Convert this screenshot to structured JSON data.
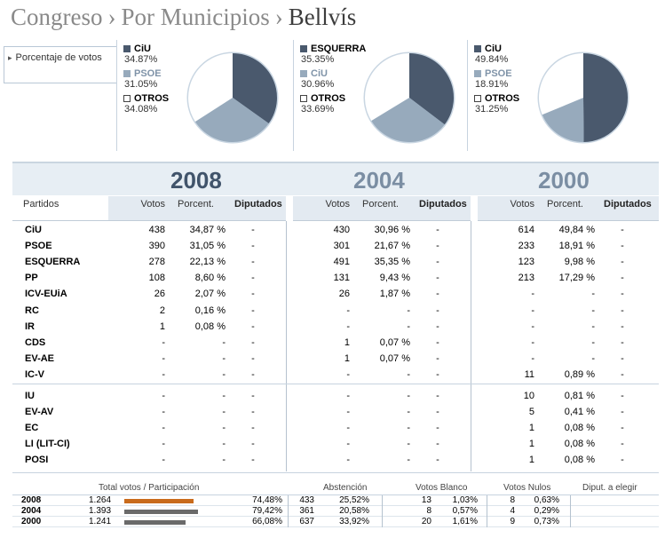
{
  "breadcrumb": {
    "part1": "Congreso",
    "sep": "›",
    "part2": "Por Municipios",
    "current": "Bellvís"
  },
  "sidebar": {
    "tab_label": "Porcentaje de votos"
  },
  "pies": [
    {
      "year": "2008",
      "legend": [
        {
          "name": "CiU",
          "value": "34.87%",
          "color": "#4a596d"
        },
        {
          "name": "PSOE",
          "value": "31.05%",
          "color": "#97aabc"
        },
        {
          "name": "OTROS",
          "value": "34.08%",
          "color": "#ffffff"
        }
      ]
    },
    {
      "year": "2004",
      "legend": [
        {
          "name": "ESQUERRA",
          "value": "35.35%",
          "color": "#4a596d"
        },
        {
          "name": "CiU",
          "value": "30.96%",
          "color": "#97aabc"
        },
        {
          "name": "OTROS",
          "value": "33.69%",
          "color": "#ffffff"
        }
      ]
    },
    {
      "year": "2000",
      "legend": [
        {
          "name": "CiU",
          "value": "49.84%",
          "color": "#4a596d"
        },
        {
          "name": "PSOE",
          "value": "18.91%",
          "color": "#97aabc"
        },
        {
          "name": "OTROS",
          "value": "31.25%",
          "color": "#ffffff"
        }
      ]
    }
  ],
  "years": [
    "2008",
    "2004",
    "2000"
  ],
  "columns": {
    "partidos": "Partidos",
    "votos": "Votos",
    "porcent": "Porcent.",
    "diputados": "Diputados"
  },
  "rows": [
    {
      "party": "CiU",
      "v": [
        [
          "438",
          "34,87 %",
          "-"
        ],
        [
          "430",
          "30,96 %",
          "-"
        ],
        [
          "614",
          "49,84 %",
          "-"
        ]
      ]
    },
    {
      "party": "PSOE",
      "v": [
        [
          "390",
          "31,05 %",
          "-"
        ],
        [
          "301",
          "21,67 %",
          "-"
        ],
        [
          "233",
          "18,91 %",
          "-"
        ]
      ]
    },
    {
      "party": "ESQUERRA",
      "v": [
        [
          "278",
          "22,13 %",
          "-"
        ],
        [
          "491",
          "35,35 %",
          "-"
        ],
        [
          "123",
          "9,98 %",
          "-"
        ]
      ]
    },
    {
      "party": "PP",
      "v": [
        [
          "108",
          "8,60 %",
          "-"
        ],
        [
          "131",
          "9,43 %",
          "-"
        ],
        [
          "213",
          "17,29 %",
          "-"
        ]
      ]
    },
    {
      "party": "ICV-EUiA",
      "v": [
        [
          "26",
          "2,07 %",
          "-"
        ],
        [
          "26",
          "1,87 %",
          "-"
        ],
        [
          "-",
          "-",
          "-"
        ]
      ]
    },
    {
      "party": "RC",
      "v": [
        [
          "2",
          "0,16 %",
          "-"
        ],
        [
          "-",
          "-",
          "-"
        ],
        [
          "-",
          "-",
          "-"
        ]
      ]
    },
    {
      "party": "IR",
      "v": [
        [
          "1",
          "0,08 %",
          "-"
        ],
        [
          "-",
          "-",
          "-"
        ],
        [
          "-",
          "-",
          "-"
        ]
      ]
    },
    {
      "party": "CDS",
      "v": [
        [
          "-",
          "-",
          "-"
        ],
        [
          "1",
          "0,07 %",
          "-"
        ],
        [
          "-",
          "-",
          "-"
        ]
      ]
    },
    {
      "party": "EV-AE",
      "v": [
        [
          "-",
          "-",
          "-"
        ],
        [
          "1",
          "0,07 %",
          "-"
        ],
        [
          "-",
          "-",
          "-"
        ]
      ]
    },
    {
      "party": "IC-V",
      "v": [
        [
          "-",
          "-",
          "-"
        ],
        [
          "-",
          "-",
          "-"
        ],
        [
          "11",
          "0,89 %",
          "-"
        ]
      ]
    },
    {
      "party": "IU",
      "v": [
        [
          "-",
          "-",
          "-"
        ],
        [
          "-",
          "-",
          "-"
        ],
        [
          "10",
          "0,81 %",
          "-"
        ]
      ]
    },
    {
      "party": "EV-AV",
      "v": [
        [
          "-",
          "-",
          "-"
        ],
        [
          "-",
          "-",
          "-"
        ],
        [
          "5",
          "0,41 %",
          "-"
        ]
      ]
    },
    {
      "party": "EC",
      "v": [
        [
          "-",
          "-",
          "-"
        ],
        [
          "-",
          "-",
          "-"
        ],
        [
          "1",
          "0,08 %",
          "-"
        ]
      ]
    },
    {
      "party": "LI (LIT-CI)",
      "v": [
        [
          "-",
          "-",
          "-"
        ],
        [
          "-",
          "-",
          "-"
        ],
        [
          "1",
          "0,08 %",
          "-"
        ]
      ]
    },
    {
      "party": "POSI",
      "v": [
        [
          "-",
          "-",
          "-"
        ],
        [
          "-",
          "-",
          "-"
        ],
        [
          "1",
          "0,08 %",
          "-"
        ]
      ]
    }
  ],
  "summary": {
    "headers": {
      "total": "Total votos / Participación",
      "abst": "Abstención",
      "blanco": "Votos Blanco",
      "nulos": "Votos Nulos",
      "diput": "Diput. a elegir"
    },
    "rows": [
      {
        "year": "2008",
        "total": "1.264",
        "particip": "74,48%",
        "particip_frac": 0.7448,
        "bar_color": "#c96b1c",
        "abst_n": "433",
        "abst_p": "25,52%",
        "blanco_n": "13",
        "blanco_p": "1,03%",
        "nulos_n": "8",
        "nulos_p": "0,63%"
      },
      {
        "year": "2004",
        "total": "1.393",
        "particip": "79,42%",
        "particip_frac": 0.7942,
        "bar_color": "#6a6a6a",
        "abst_n": "361",
        "abst_p": "20,58%",
        "blanco_n": "8",
        "blanco_p": "0,57%",
        "nulos_n": "4",
        "nulos_p": "0,29%"
      },
      {
        "year": "2000",
        "total": "1.241",
        "particip": "66,08%",
        "particip_frac": 0.6608,
        "bar_color": "#6a6a6a",
        "abst_n": "637",
        "abst_p": "33,92%",
        "blanco_n": "20",
        "blanco_p": "1,61%",
        "nulos_n": "9",
        "nulos_p": "0,73%"
      }
    ]
  }
}
